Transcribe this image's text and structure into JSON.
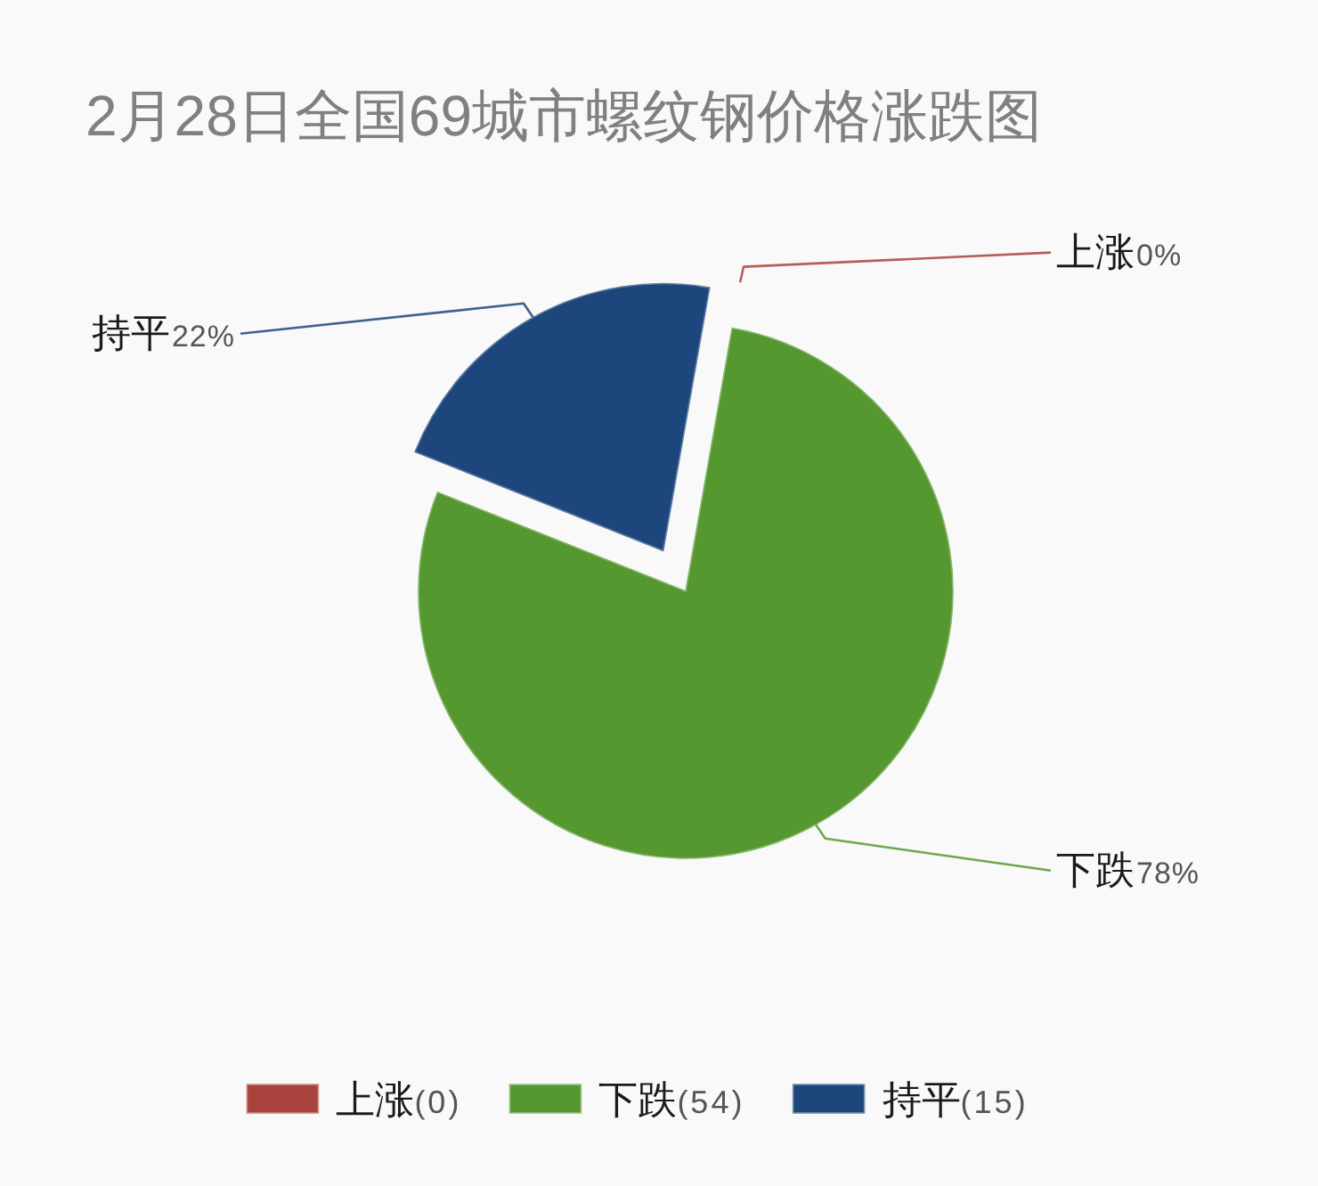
{
  "chart_data": {
    "type": "pie",
    "title": "2月28日全国69城市螺纹钢价格涨跌图",
    "categories": [
      "上涨",
      "下跌",
      "持平"
    ],
    "values": [
      0,
      54,
      15
    ],
    "colors": [
      "#a8423d",
      "#54982f",
      "#1c467c"
    ],
    "value_labels": [
      "(0)",
      "(54)",
      "(15)"
    ],
    "annotations": [
      "0%",
      "78%",
      "22%"
    ],
    "legend": "bottom"
  }
}
